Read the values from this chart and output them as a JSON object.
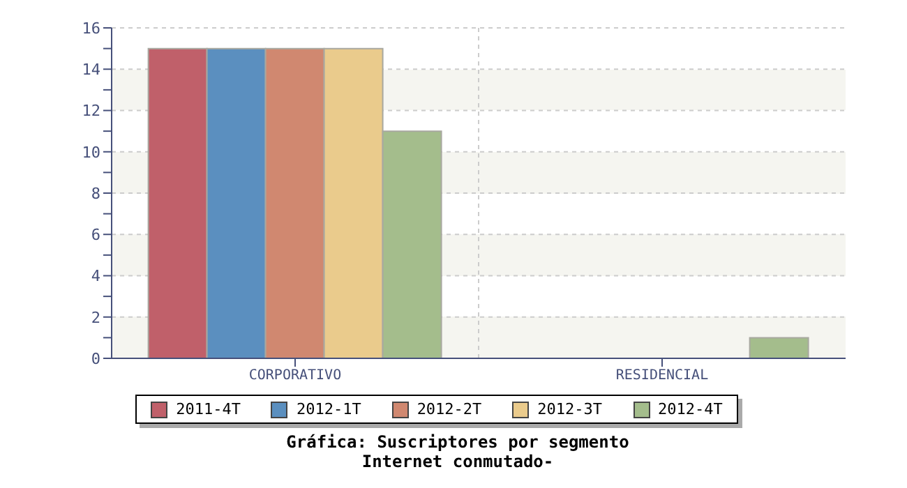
{
  "chart_data": {
    "type": "bar",
    "title": "Gráfica: Suscriptores por segmento",
    "subtitle": "Internet conmutado-",
    "categories": [
      "CORPORATIVO",
      "RESIDENCIAL"
    ],
    "series": [
      {
        "name": "2011-4T",
        "color": "#c0606a",
        "values": [
          15,
          0
        ]
      },
      {
        "name": "2012-1T",
        "color": "#5b8fbf",
        "values": [
          15,
          0
        ]
      },
      {
        "name": "2012-2T",
        "color": "#d08870",
        "values": [
          15,
          0
        ]
      },
      {
        "name": "2012-3T",
        "color": "#eacb8c",
        "values": [
          15,
          0
        ]
      },
      {
        "name": "2012-4T",
        "color": "#a4bd8c",
        "values": [
          11,
          1
        ]
      }
    ],
    "ylim": [
      0,
      16
    ],
    "yticks": [
      0,
      {
        "value": 1,
        "label": null
      },
      2,
      {
        "value": 3,
        "label": null
      },
      4,
      {
        "value": 5,
        "label": null
      },
      6,
      {
        "value": 7,
        "label": null
      },
      8,
      {
        "value": 9,
        "label": null
      },
      10,
      {
        "value": 11,
        "label": null
      },
      12,
      {
        "value": 13,
        "label": null
      },
      14,
      {
        "value": 15,
        "label": null
      },
      16
    ],
    "grid": true,
    "legend": "bottom"
  }
}
